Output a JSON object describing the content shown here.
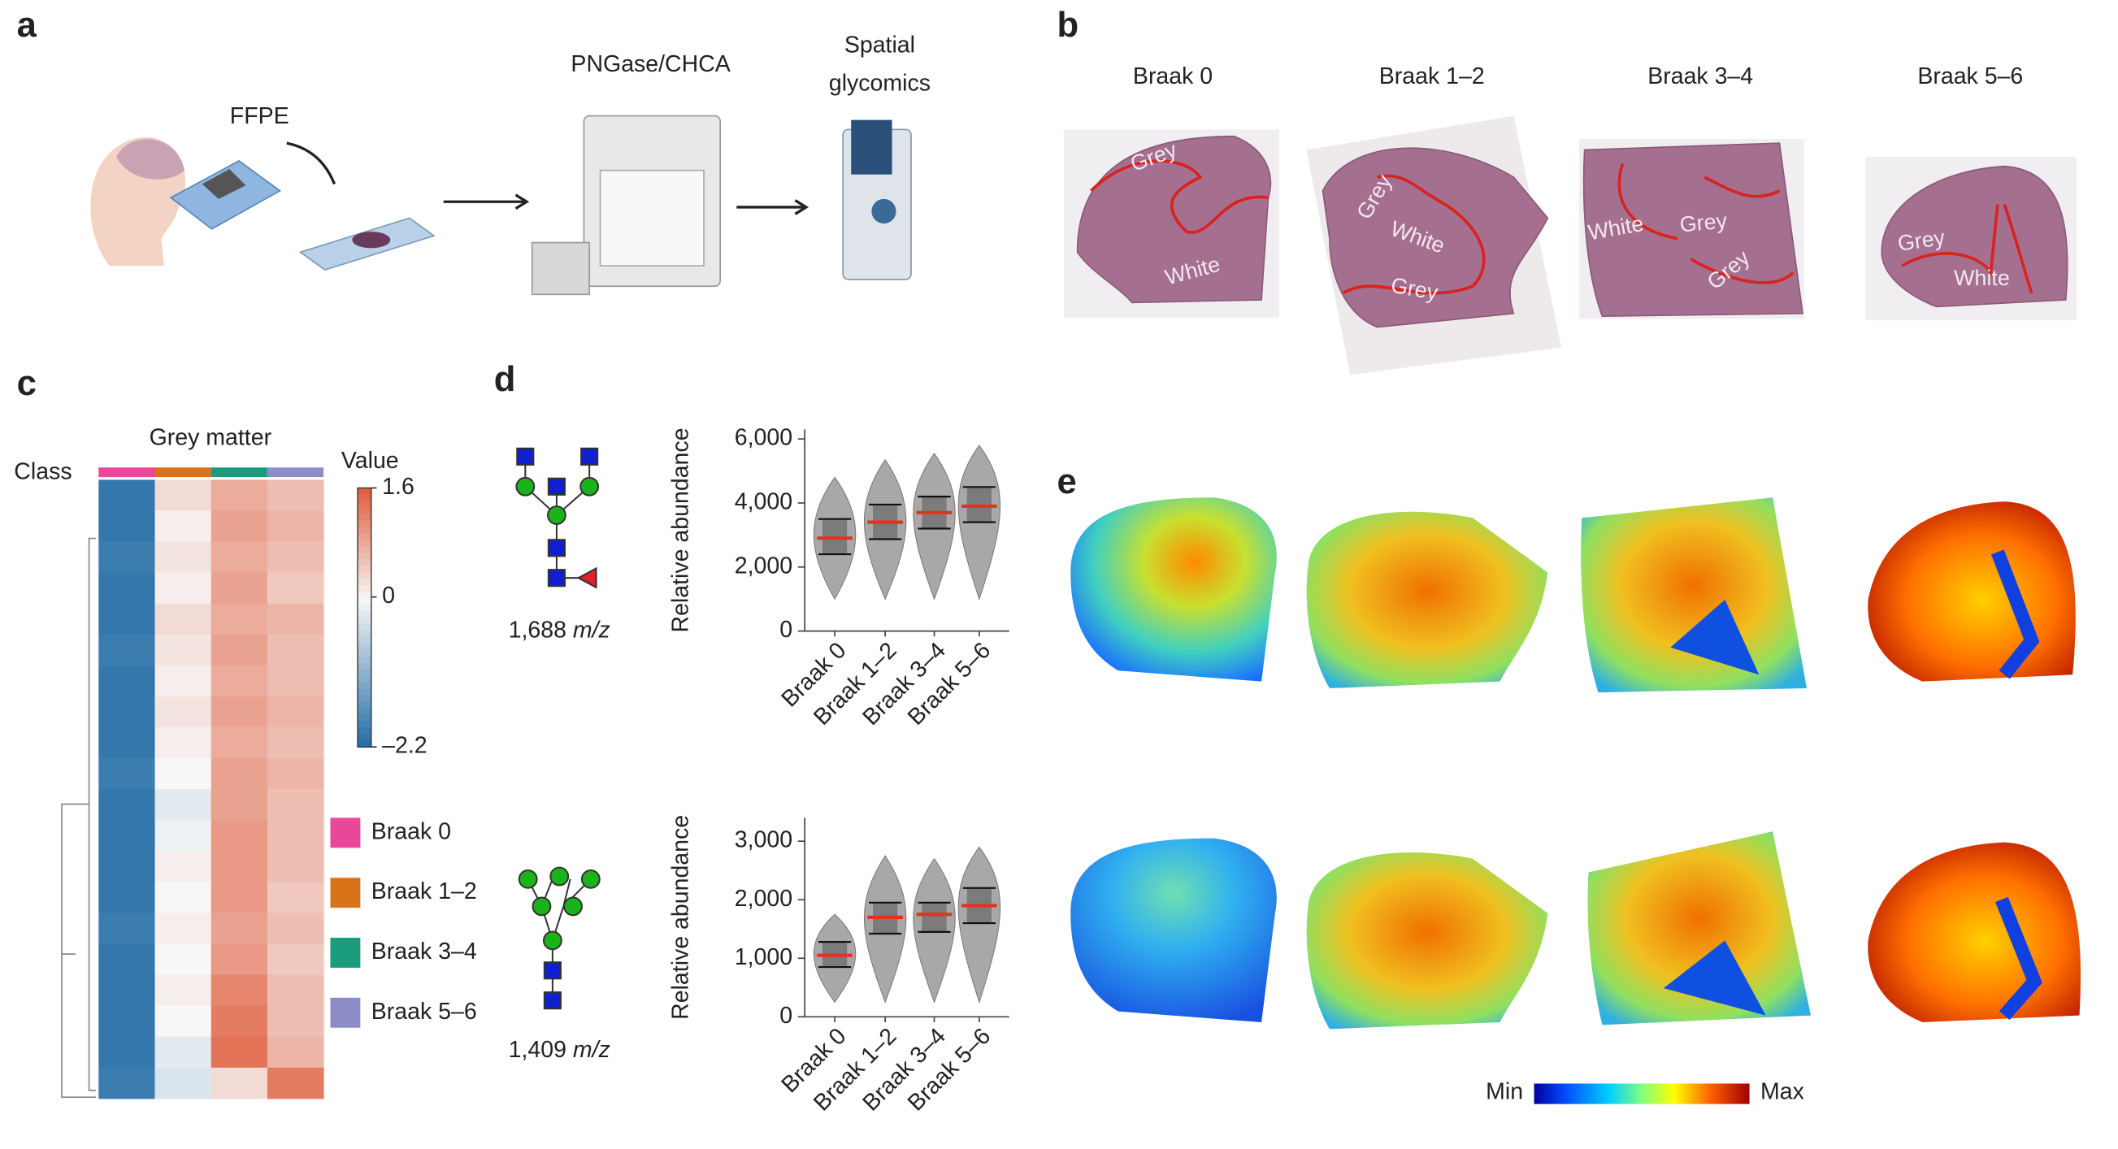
{
  "panel_a": {
    "label": "a",
    "ffpe": "FFPE",
    "matrix": "PNGase/CHCA",
    "imaging": [
      "Spatial",
      "glycomics"
    ]
  },
  "panel_b": {
    "label": "b",
    "columns": [
      "Braak 0",
      "Braak 1–2",
      "Braak 3–4",
      "Braak 5–6"
    ],
    "grey": "Grey",
    "white": "White"
  },
  "panel_c": {
    "label": "c",
    "title": "Grey matter",
    "class_label": "Class",
    "legend_title": "Value",
    "clim": [
      -2.2,
      1.6
    ],
    "cticks": [
      1.6,
      0,
      {
        "value": -2.2,
        "label": "–2.2"
      }
    ],
    "classes": [
      {
        "name": "Braak 0",
        "color": "#e8479a"
      },
      {
        "name": "Braak 1–2",
        "color": "#d9731a"
      },
      {
        "name": "Braak 3–4",
        "color": "#1a9b7c"
      },
      {
        "name": "Braak 5–6",
        "color": "#8c8cc8"
      }
    ],
    "heatmap": [
      [
        -2.0,
        0.3,
        0.8,
        0.6
      ],
      [
        -2.0,
        0.1,
        0.9,
        0.7
      ],
      [
        -1.9,
        0.2,
        0.8,
        0.6
      ],
      [
        -2.0,
        0.1,
        0.9,
        0.5
      ],
      [
        -2.0,
        0.3,
        0.8,
        0.7
      ],
      [
        -1.9,
        0.2,
        0.9,
        0.6
      ],
      [
        -2.0,
        0.1,
        0.8,
        0.6
      ],
      [
        -2.0,
        0.2,
        0.9,
        0.7
      ],
      [
        -2.0,
        0.1,
        0.8,
        0.6
      ],
      [
        -1.9,
        0.0,
        0.9,
        0.7
      ],
      [
        -2.0,
        -0.2,
        0.9,
        0.6
      ],
      [
        -2.0,
        -0.1,
        1.0,
        0.6
      ],
      [
        -2.0,
        0.1,
        1.0,
        0.6
      ],
      [
        -2.0,
        0.0,
        1.0,
        0.5
      ],
      [
        -1.9,
        0.1,
        0.9,
        0.6
      ],
      [
        -2.0,
        0.0,
        1.0,
        0.5
      ],
      [
        -2.0,
        0.1,
        1.2,
        0.6
      ],
      [
        -2.0,
        0.0,
        1.3,
        0.6
      ],
      [
        -2.0,
        -0.2,
        1.4,
        0.7
      ],
      [
        -1.9,
        -0.3,
        0.3,
        1.3
      ]
    ]
  },
  "panel_d": {
    "label": "d",
    "charts": [
      {
        "type": "violin",
        "mz": "1,688",
        "mz_unit": "m/z",
        "ylabel": "Relative abundance",
        "categories": [
          "Braak 0",
          "Braak 1–2",
          "Braak 3–4",
          "Braak 5–6"
        ],
        "medians": [
          2900,
          3400,
          3700,
          3900
        ],
        "q1": [
          2400,
          2870,
          3200,
          3400
        ],
        "q3": [
          3500,
          3950,
          4200,
          4500
        ],
        "min": [
          1000,
          1000,
          1000,
          1000
        ],
        "max": [
          4800,
          5350,
          5550,
          5800
        ],
        "ylim": [
          0,
          6300
        ],
        "yticks": [
          0,
          {
            "value": 2000,
            "label": "2,000"
          },
          {
            "value": 4000,
            "label": "4,000"
          },
          {
            "value": 6000,
            "label": "6,000"
          }
        ]
      },
      {
        "type": "violin",
        "mz": "1,409",
        "mz_unit": "m/z",
        "ylabel": "Relative abundance",
        "categories": [
          "Braak 0",
          "Braak 1–2",
          "Braak 3–4",
          "Braak 5–6"
        ],
        "medians": [
          1050,
          1700,
          1750,
          1900
        ],
        "q1": [
          850,
          1420,
          1450,
          1600
        ],
        "q3": [
          1280,
          1950,
          1950,
          2200
        ],
        "min": [
          250,
          250,
          250,
          250
        ],
        "max": [
          1750,
          2750,
          2700,
          2900
        ],
        "ylim": [
          0,
          3400
        ],
        "yticks": [
          0,
          {
            "value": 1000,
            "label": "1,000"
          },
          {
            "value": 2000,
            "label": "2,000"
          },
          {
            "value": 3000,
            "label": "3,000"
          }
        ]
      }
    ]
  },
  "panel_e": {
    "label": "e",
    "min": "Min",
    "max": "Max"
  }
}
